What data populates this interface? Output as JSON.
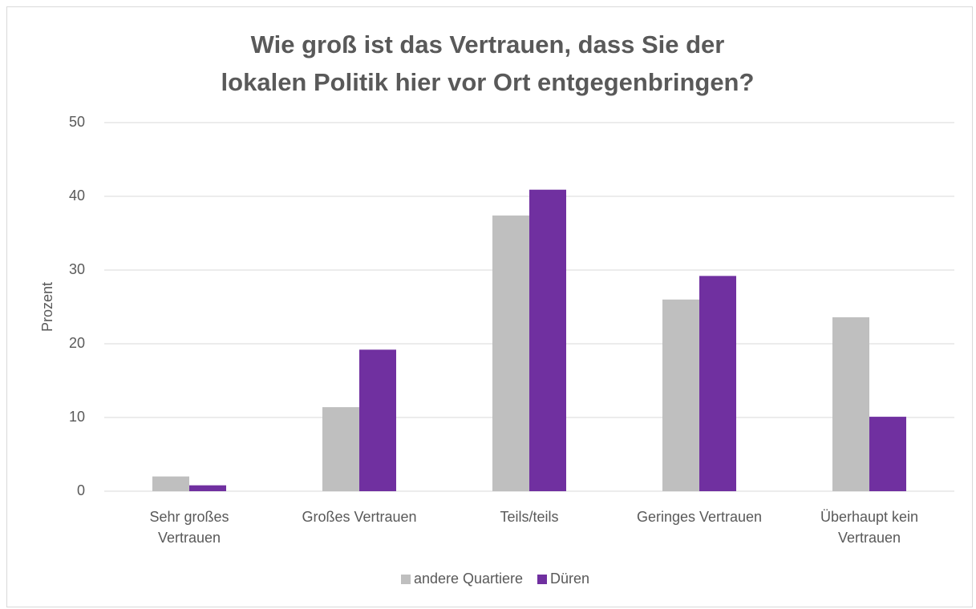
{
  "chart_data": {
    "type": "bar",
    "title": "Wie groß ist das Vertrauen, dass Sie der lokalen Politik hier vor Ort entgegenbringen?",
    "y_label": "Prozent",
    "categories": [
      "Sehr großes Vertrauen",
      "Großes Vertrauen",
      "Teils/teils",
      "Geringes Vertrauen",
      "Überhaupt kein Vertrauen"
    ],
    "series": [
      {
        "name": "andere Quartiere",
        "color": "#bfbfbf",
        "values": [
          2.0,
          11.4,
          37.4,
          26.0,
          23.6
        ]
      },
      {
        "name": "Düren",
        "color": "#7030a0",
        "values": [
          0.8,
          19.2,
          40.9,
          29.2,
          10.1
        ]
      }
    ],
    "ylim": [
      0,
      50
    ],
    "yticks": [
      0,
      10,
      20,
      30,
      40,
      50
    ],
    "grid": true,
    "legend": "bottom"
  }
}
